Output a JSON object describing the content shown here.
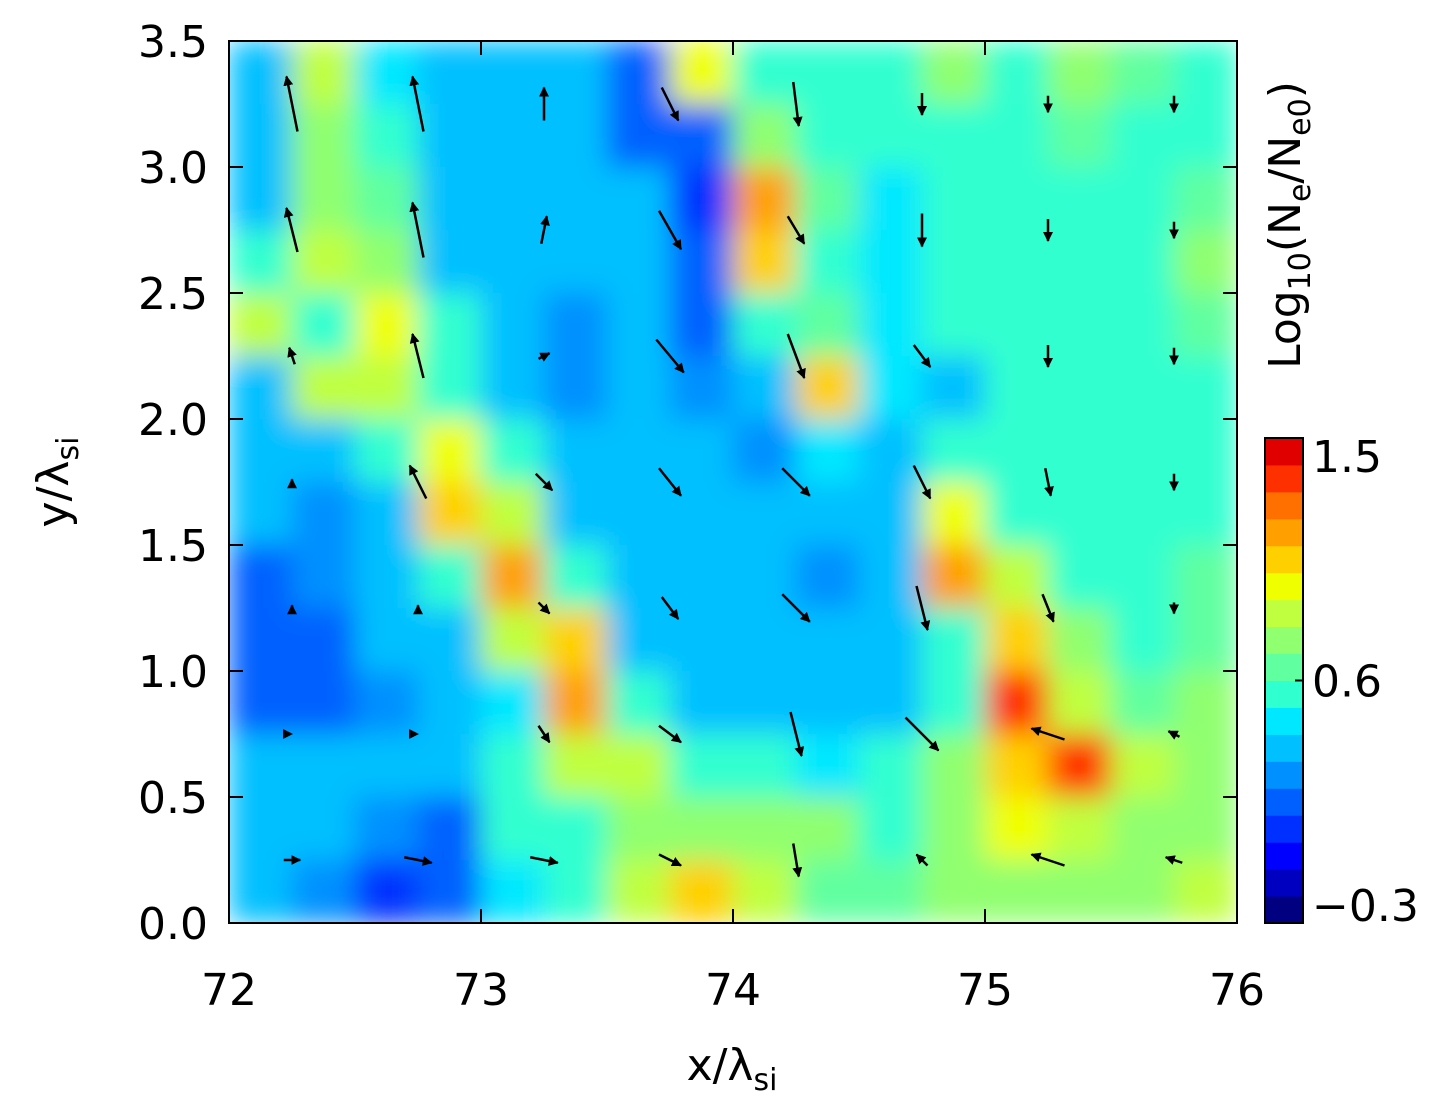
{
  "chart_data": {
    "type": "contour",
    "xlabel": [
      "x/λ",
      "si"
    ],
    "ylabel": [
      "y/λ",
      "si"
    ],
    "xlim": [
      72,
      76
    ],
    "ylim": [
      0,
      3.5
    ],
    "xticks": [
      72,
      73,
      74,
      75,
      76
    ],
    "yticks": [
      {
        "value": 0,
        "label": "0.0"
      },
      {
        "value": 0.5,
        "label": "0.5"
      },
      {
        "value": 1,
        "label": "1.0"
      },
      {
        "value": 1.5,
        "label": "1.5"
      },
      {
        "value": 2,
        "label": "2.0"
      },
      {
        "value": 2.5,
        "label": "2.5"
      },
      {
        "value": 3,
        "label": "3.0"
      },
      {
        "value": 3.5,
        "label": "3.5"
      }
    ],
    "colorbar": {
      "label": [
        "Log",
        "10",
        "(N",
        "e",
        "/N",
        "e0",
        ")"
      ],
      "clim": [
        -0.3,
        1.5
      ],
      "ticks": [
        1.5,
        0.6,
        {
          "value": -0.3,
          "label": "−0.3"
        }
      ],
      "colors": [
        "#000080",
        "#0000c0",
        "#0000ff",
        "#0030ff",
        "#0060ff",
        "#0090ff",
        "#00c0ff",
        "#00e8ff",
        "#30ffd0",
        "#60ffa0",
        "#90ff70",
        "#c0ff40",
        "#f0ff00",
        "#ffd000",
        "#ffa000",
        "#ff7000",
        "#ff3000",
        "#e00000"
      ]
    },
    "z": [
      [
        0.4,
        0.8,
        0.45,
        0.4,
        0.35,
        0.3,
        0.15,
        0.9,
        0.6,
        0.6,
        0.55,
        0.7,
        0.6,
        0.7,
        0.65,
        0.6
      ],
      [
        0.4,
        0.75,
        0.6,
        0.4,
        0.35,
        0.3,
        0.15,
        0.1,
        0.75,
        0.6,
        0.5,
        0.55,
        0.6,
        0.65,
        0.6,
        0.6
      ],
      [
        0.4,
        0.7,
        0.65,
        0.4,
        0.4,
        0.4,
        0.3,
        0.0,
        1.2,
        0.65,
        0.45,
        0.5,
        0.55,
        0.6,
        0.6,
        0.65
      ],
      [
        0.55,
        0.8,
        0.7,
        0.4,
        0.3,
        0.35,
        0.3,
        0.1,
        1.0,
        0.6,
        0.45,
        0.5,
        0.5,
        0.55,
        0.6,
        0.7
      ],
      [
        0.8,
        0.6,
        0.9,
        0.6,
        0.3,
        0.25,
        0.3,
        0.15,
        0.6,
        0.65,
        0.45,
        0.5,
        0.5,
        0.55,
        0.6,
        0.65
      ],
      [
        0.4,
        0.8,
        0.8,
        0.6,
        0.3,
        0.25,
        0.3,
        0.2,
        0.4,
        1.0,
        0.45,
        0.4,
        0.5,
        0.55,
        0.6,
        0.6
      ],
      [
        0.3,
        0.3,
        0.6,
        0.95,
        0.5,
        0.3,
        0.3,
        0.3,
        0.25,
        0.45,
        0.3,
        0.55,
        0.6,
        0.55,
        0.6,
        0.6
      ],
      [
        0.3,
        0.2,
        0.35,
        1.0,
        0.8,
        0.4,
        0.35,
        0.4,
        0.3,
        0.3,
        0.4,
        0.9,
        0.6,
        0.55,
        0.6,
        0.6
      ],
      [
        0.15,
        0.2,
        0.35,
        0.6,
        1.1,
        0.6,
        0.4,
        0.35,
        0.3,
        0.25,
        0.4,
        1.2,
        0.8,
        0.6,
        0.6,
        0.65
      ],
      [
        0.1,
        0.15,
        0.3,
        0.35,
        0.8,
        1.0,
        0.4,
        0.3,
        0.3,
        0.35,
        0.3,
        0.5,
        1.0,
        0.7,
        0.6,
        0.65
      ],
      [
        0.15,
        0.15,
        0.2,
        0.35,
        0.45,
        1.1,
        0.6,
        0.4,
        0.35,
        0.3,
        0.3,
        0.5,
        1.3,
        0.8,
        0.65,
        0.7
      ],
      [
        0.35,
        0.3,
        0.3,
        0.35,
        0.5,
        0.8,
        0.85,
        0.6,
        0.5,
        0.45,
        0.6,
        0.7,
        1.0,
        1.3,
        0.8,
        0.7
      ],
      [
        0.4,
        0.35,
        0.2,
        0.15,
        0.5,
        0.6,
        0.7,
        0.75,
        0.75,
        0.7,
        0.6,
        0.75,
        0.9,
        0.85,
        0.7,
        0.75
      ],
      [
        0.35,
        0.2,
        0.05,
        0.1,
        0.45,
        0.6,
        0.8,
        1.0,
        0.85,
        0.65,
        0.65,
        0.7,
        0.75,
        0.7,
        0.7,
        0.8
      ]
    ],
    "vx": [
      72.25,
      72.75,
      73.25,
      73.75,
      74.25,
      74.75,
      75.25,
      75.75
    ],
    "vy": [
      3.25,
      2.75,
      2.25,
      1.75,
      1.25,
      0.75,
      0.25
    ],
    "u": [
      [
        -0.2,
        -0.2,
        0,
        0.3,
        0.1,
        0,
        0,
        0
      ],
      [
        -0.2,
        -0.2,
        0.1,
        0.4,
        0.3,
        0,
        0,
        0
      ],
      [
        -0.1,
        -0.2,
        0.2,
        0.5,
        0.3,
        0.3,
        0,
        0
      ],
      [
        0,
        -0.3,
        0.3,
        0.4,
        0.5,
        0.3,
        0.1,
        0
      ],
      [
        0,
        0,
        0.2,
        0.3,
        0.5,
        0.2,
        0.2,
        0
      ],
      [
        0,
        0,
        0.2,
        0.4,
        0.2,
        0.6,
        -0.6,
        -0.2
      ],
      [
        0.3,
        0.5,
        0.5,
        0.4,
        0.1,
        -0.2,
        -0.6,
        -0.3
      ]
    ],
    "v": [
      [
        1.0,
        1.0,
        0.6,
        -0.6,
        -0.8,
        -0.4,
        -0.3,
        -0.3
      ],
      [
        0.8,
        1.0,
        0.5,
        -0.7,
        -0.5,
        -0.6,
        -0.4,
        -0.3
      ],
      [
        0.3,
        0.8,
        0.1,
        -0.6,
        -0.8,
        -0.4,
        -0.4,
        -0.3
      ],
      [
        0.1,
        0.6,
        -0.3,
        -0.5,
        -0.5,
        -0.6,
        -0.5,
        -0.3
      ],
      [
        0.1,
        0.1,
        -0.2,
        -0.4,
        -0.5,
        -0.8,
        -0.5,
        -0.2
      ],
      [
        0,
        0,
        -0.3,
        -0.3,
        -0.8,
        -0.6,
        0.2,
        0.1
      ],
      [
        0,
        -0.1,
        -0.1,
        -0.2,
        -0.6,
        0.2,
        0.2,
        0.1
      ]
    ]
  }
}
